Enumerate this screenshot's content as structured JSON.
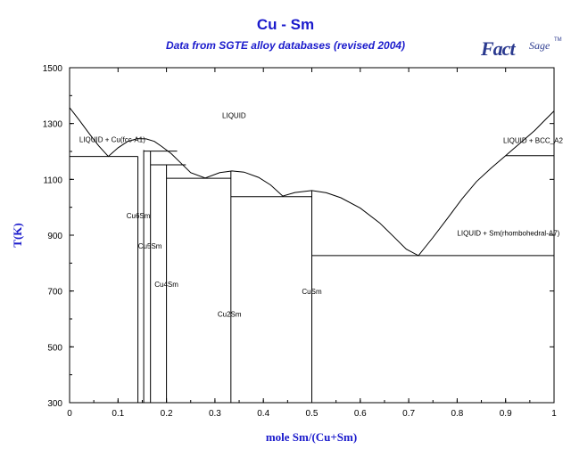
{
  "chart_data": {
    "type": "line",
    "title": "Cu - Sm",
    "subtitle": "Data from SGTE alloy databases (revised 2004)",
    "xlabel": "mole Sm/(Cu+Sm)",
    "ylabel": "T(K)",
    "xlim": [
      0,
      1
    ],
    "ylim": [
      300,
      1500
    ],
    "xticks": [
      "0",
      "0.1",
      "0.2",
      "0.3",
      "0.4",
      "0.5",
      "0.6",
      "0.7",
      "0.8",
      "0.9",
      "1"
    ],
    "xtick_values": [
      0,
      0.1,
      0.2,
      0.3,
      0.4,
      0.5,
      0.6,
      0.7,
      0.8,
      0.9,
      1
    ],
    "yticks": [
      "300",
      "500",
      "700",
      "900",
      "1100",
      "1300",
      "1500"
    ],
    "ytick_values": [
      300,
      500,
      700,
      900,
      1100,
      1300,
      1500
    ],
    "grid": false,
    "liquidus": [
      [
        0,
        1357
      ],
      [
        0.02,
        1312
      ],
      [
        0.04,
        1265
      ],
      [
        0.06,
        1220
      ],
      [
        0.08,
        1182
      ],
      [
        0.1,
        1213
      ],
      [
        0.12,
        1236
      ],
      [
        0.14,
        1246
      ],
      [
        0.158,
        1245
      ],
      [
        0.175,
        1236
      ],
      [
        0.19,
        1218
      ],
      [
        0.21,
        1192
      ],
      [
        0.23,
        1158
      ],
      [
        0.25,
        1124
      ],
      [
        0.28,
        1105
      ],
      [
        0.31,
        1124
      ],
      [
        0.335,
        1130
      ],
      [
        0.36,
        1126
      ],
      [
        0.39,
        1107
      ],
      [
        0.415,
        1080
      ],
      [
        0.44,
        1040
      ],
      [
        0.465,
        1053
      ],
      [
        0.5,
        1060
      ],
      [
        0.53,
        1052
      ],
      [
        0.56,
        1034
      ],
      [
        0.6,
        997
      ],
      [
        0.64,
        944
      ],
      [
        0.67,
        893
      ],
      [
        0.695,
        850
      ],
      [
        0.72,
        827
      ],
      [
        0.75,
        892
      ],
      [
        0.78,
        960
      ],
      [
        0.81,
        1030
      ],
      [
        0.84,
        1092
      ],
      [
        0.87,
        1140
      ],
      [
        0.9,
        1185
      ],
      [
        0.93,
        1230
      ],
      [
        0.96,
        1275
      ],
      [
        0.98,
        1310
      ],
      [
        1,
        1345
      ]
    ],
    "eutectics": [
      {
        "x": [
          0,
          0.141
        ],
        "y": 1182
      },
      {
        "x": [
          0.153,
          0.222
        ],
        "y": 1201
      },
      {
        "x": [
          0.167,
          0.24
        ],
        "y": 1152
      },
      {
        "x": [
          0.2,
          0.333
        ],
        "y": 1104
      },
      {
        "x": [
          0.333,
          0.5
        ],
        "y": 1038
      },
      {
        "x": [
          0.5,
          1
        ],
        "y": 827
      },
      {
        "x": [
          0.9,
          1
        ],
        "y": 1185
      }
    ],
    "compound_lines": [
      {
        "x": 0.141,
        "y_top": 1182
      },
      {
        "x": 0.153,
        "y_top": 1205
      },
      {
        "x": 0.167,
        "y_top": 1201
      },
      {
        "x": 0.2,
        "y_top": 1152
      },
      {
        "x": 0.333,
        "y_top": 1130
      },
      {
        "x": 0.5,
        "y_top": 1060
      },
      {
        "x": 1,
        "y_top": 1230
      }
    ],
    "annotations": [
      {
        "text": "LIQUID",
        "x": 0.315,
        "y": 1320
      },
      {
        "text": "LIQUID + Cu(fcc-A1)",
        "x": 0.02,
        "y": 1233
      },
      {
        "text": "LIQUID + BCC_A2",
        "x": 0.895,
        "y": 1230
      },
      {
        "text": "LIQUID + Sm(rhombohedral-A7)",
        "x": 0.8,
        "y": 898
      },
      {
        "text": "Cu6Sm",
        "x": 0.142,
        "y": 960
      },
      {
        "text": "Cu5Sm",
        "x": 0.166,
        "y": 852
      },
      {
        "text": "Cu4Sm",
        "x": 0.2,
        "y": 715
      },
      {
        "text": "Cu2Sm",
        "x": 0.33,
        "y": 608
      },
      {
        "text": "CuSm",
        "x": 0.5,
        "y": 690
      }
    ]
  }
}
